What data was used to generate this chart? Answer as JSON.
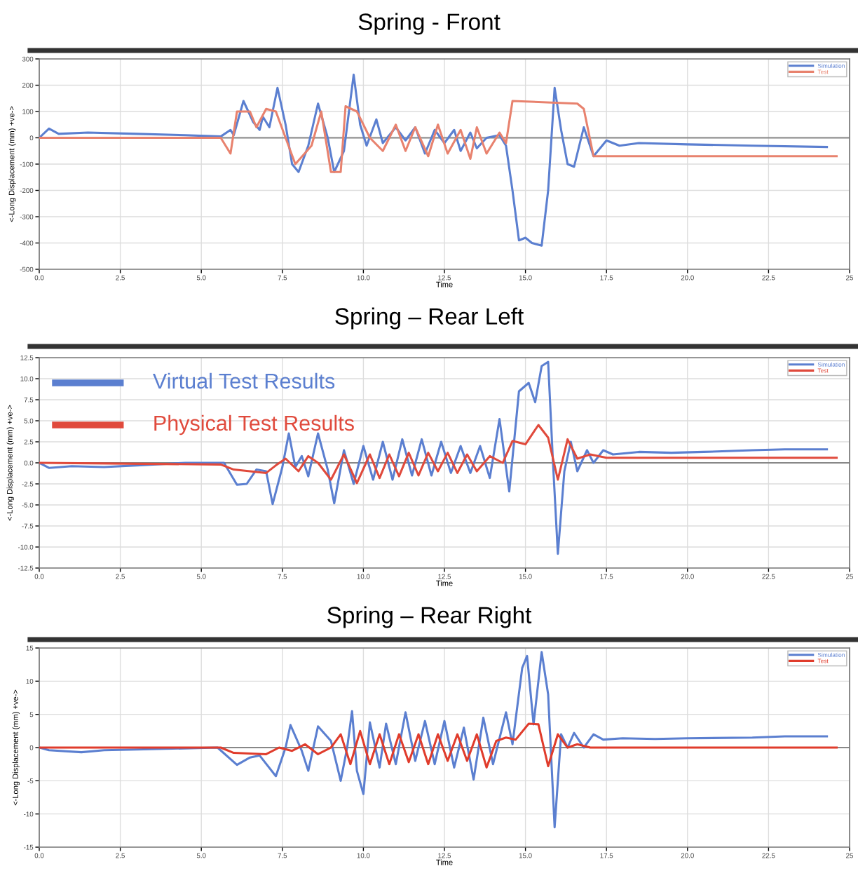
{
  "chart_data": [
    {
      "type": "line",
      "title": "Spring - Front",
      "xlabel": "Time",
      "ylabel": "<-Long Displacement (mm) +ve->",
      "xlim": [
        0,
        25
      ],
      "xticks": [
        {
          "value": 0,
          "label": "0.0"
        },
        2.5,
        {
          "value": 5,
          "label": "5.0"
        },
        7.5,
        {
          "value": 10,
          "label": "10.0"
        },
        12.5,
        {
          "value": 15,
          "label": "15.0"
        },
        17.5,
        {
          "value": 20,
          "label": "20.0"
        },
        22.5,
        {
          "value": 25,
          "label": "25"
        }
      ],
      "ylim": [
        -500,
        300
      ],
      "yticks": [
        -500,
        -400,
        -300,
        -200,
        -100,
        0,
        100,
        200,
        300
      ],
      "grid": true,
      "legend": "top right",
      "ref_lines": [
        {
          "axis": "y",
          "value": 0,
          "color": "#888888"
        }
      ],
      "series": [
        {
          "name": "Simulation",
          "color": "#5b7fd0",
          "x": [
            0,
            0.3,
            0.6,
            1.5,
            3,
            4.5,
            5.6,
            5.9,
            6.0,
            6.3,
            6.6,
            6.8,
            6.9,
            7.1,
            7.35,
            7.6,
            7.8,
            8.0,
            8.3,
            8.6,
            8.9,
            9.1,
            9.4,
            9.7,
            9.9,
            10.1,
            10.4,
            10.6,
            11.0,
            11.3,
            11.6,
            11.9,
            12.2,
            12.5,
            12.8,
            13.0,
            13.3,
            13.5,
            13.8,
            14.2,
            14.4,
            14.6,
            14.8,
            15.0,
            15.2,
            15.5,
            15.7,
            15.9,
            16.1,
            16.3,
            16.5,
            16.8,
            17.1,
            17.5,
            17.9,
            18.5,
            20,
            22,
            24.3
          ],
          "values": [
            0,
            35,
            15,
            20,
            15,
            10,
            5,
            30,
            10,
            140,
            60,
            30,
            80,
            40,
            190,
            50,
            -100,
            -130,
            -30,
            130,
            0,
            -130,
            -50,
            240,
            50,
            -30,
            70,
            -20,
            40,
            -10,
            40,
            -60,
            30,
            -20,
            30,
            -50,
            20,
            -40,
            0,
            10,
            -30,
            -200,
            -390,
            -380,
            -400,
            -410,
            -200,
            190,
            30,
            -100,
            -110,
            40,
            -70,
            -10,
            -30,
            -20,
            -25,
            -30,
            -35
          ]
        },
        {
          "name": "Test",
          "color": "#e8826e",
          "x": [
            0,
            5.6,
            5.9,
            6.1,
            6.5,
            6.7,
            7.0,
            7.3,
            7.6,
            7.9,
            8.4,
            8.7,
            9.0,
            9.3,
            9.45,
            9.8,
            10.2,
            10.6,
            11.0,
            11.3,
            11.6,
            12.0,
            12.3,
            12.6,
            13.0,
            13.3,
            13.5,
            13.8,
            14.2,
            14.4,
            14.6,
            16.6,
            16.8,
            17.1,
            24.6
          ],
          "values": [
            0,
            0,
            -60,
            100,
            100,
            40,
            110,
            100,
            0,
            -100,
            -30,
            100,
            -130,
            -130,
            120,
            100,
            0,
            -50,
            50,
            -50,
            40,
            -70,
            50,
            -60,
            30,
            -80,
            40,
            -60,
            20,
            -20,
            140,
            130,
            110,
            -70,
            -70
          ]
        }
      ]
    },
    {
      "type": "line",
      "title": "Spring – Rear Left",
      "xlabel": "Time",
      "ylabel": "<-Long Displacement (mm) +ve->",
      "xlim": [
        0,
        25
      ],
      "xticks": [
        {
          "value": 0,
          "label": "0.0"
        },
        2.5,
        {
          "value": 5,
          "label": "5.0"
        },
        7.5,
        {
          "value": 10,
          "label": "10.0"
        },
        12.5,
        {
          "value": 15,
          "label": "15.0"
        },
        17.5,
        {
          "value": 20,
          "label": "20.0"
        },
        22.5,
        {
          "value": 25,
          "label": "25"
        }
      ],
      "ylim": [
        -12.5,
        12.5
      ],
      "yticks": [
        -12.5,
        {
          "value": -10,
          "label": "-10.0"
        },
        -7.5,
        {
          "value": -5,
          "label": "-5.0"
        },
        -2.5,
        {
          "value": 0,
          "label": "0.0"
        },
        2.5,
        {
          "value": 5,
          "label": "5.0"
        },
        7.5,
        {
          "value": 10,
          "label": "10.0"
        },
        12.5
      ],
      "grid": true,
      "legend": "top right",
      "ref_lines": [
        {
          "axis": "y",
          "value": 0,
          "color": "#888888"
        }
      ],
      "annotations": [
        "Virtual Test Results",
        "Physical Test Results"
      ],
      "series": [
        {
          "name": "Simulation",
          "color": "#5b7fd0",
          "x": [
            0,
            0.3,
            1,
            2,
            3,
            4.5,
            5.7,
            6.1,
            6.4,
            6.7,
            7.0,
            7.2,
            7.5,
            7.7,
            7.9,
            8.1,
            8.3,
            8.6,
            8.9,
            9.1,
            9.4,
            9.7,
            10.0,
            10.3,
            10.6,
            10.9,
            11.2,
            11.5,
            11.8,
            12.1,
            12.4,
            12.7,
            13.0,
            13.3,
            13.6,
            13.9,
            14.2,
            14.5,
            14.8,
            15.1,
            15.3,
            15.5,
            15.7,
            15.85,
            16.0,
            16.2,
            16.4,
            16.6,
            16.9,
            17.1,
            17.4,
            17.7,
            18.5,
            19.5,
            20.5,
            22,
            23,
            24.3
          ],
          "values": [
            0,
            -0.6,
            -0.4,
            -0.5,
            -0.3,
            0,
            0,
            -2.6,
            -2.5,
            -0.8,
            -1,
            -4.9,
            -0.5,
            3.5,
            -0.5,
            0.8,
            -1.6,
            3.5,
            -0.8,
            -4.8,
            1.5,
            -2.5,
            2,
            -2,
            2.5,
            -2,
            2.8,
            -1.5,
            2.8,
            -1.5,
            2.5,
            -1.2,
            2,
            -1.2,
            2,
            -1.8,
            5.2,
            -3.4,
            8.5,
            9.5,
            7.2,
            11.5,
            12,
            0,
            -10.8,
            -1,
            2.5,
            -1,
            1.5,
            0,
            1.5,
            1,
            1.3,
            1.2,
            1.3,
            1.5,
            1.6,
            1.6
          ]
        },
        {
          "name": "Test",
          "color": "#e04a3c",
          "x": [
            0,
            5.6,
            6,
            6.5,
            7,
            7.3,
            7.6,
            8.0,
            8.3,
            8.6,
            9.0,
            9.4,
            9.8,
            10.2,
            10.5,
            10.8,
            11.1,
            11.4,
            11.7,
            12,
            12.3,
            12.6,
            12.9,
            13.2,
            13.5,
            13.9,
            14.3,
            14.6,
            15,
            15.4,
            15.7,
            16.0,
            16.3,
            16.6,
            17,
            17.5,
            24.6
          ],
          "values": [
            0,
            -0.2,
            -0.8,
            -1,
            -1.2,
            -0.3,
            0.5,
            -1,
            0.8,
            0,
            -2,
            1,
            -2.4,
            1,
            -1.8,
            1,
            -1.6,
            1.2,
            -1.5,
            1.2,
            -1,
            1.2,
            -1.2,
            1,
            -1,
            0.8,
            0,
            2.6,
            2.2,
            4.5,
            3,
            -2,
            2.8,
            0.5,
            1,
            0.6,
            0.6
          ]
        }
      ]
    },
    {
      "type": "line",
      "title": "Spring – Rear Right",
      "xlabel": "Time",
      "ylabel": "<-Long Displacement (mm) +ve->",
      "xlim": [
        0,
        25
      ],
      "xticks": [
        {
          "value": 0,
          "label": "0.0"
        },
        2.5,
        {
          "value": 5,
          "label": "5.0"
        },
        7.5,
        {
          "value": 10,
          "label": "10.0"
        },
        12.5,
        {
          "value": 15,
          "label": "15.0"
        },
        17.5,
        {
          "value": 20,
          "label": "20.0"
        },
        22.5,
        {
          "value": 25,
          "label": "25"
        }
      ],
      "ylim": [
        -15,
        15
      ],
      "yticks": [
        -15,
        -10,
        -5,
        0,
        5,
        10,
        15
      ],
      "grid": true,
      "legend": "top right",
      "ref_lines": [
        {
          "axis": "y",
          "value": 0,
          "color": "#888888"
        }
      ],
      "series": [
        {
          "name": "Simulation",
          "color": "#5b7fd0",
          "x": [
            0,
            0.3,
            1.3,
            2,
            3,
            5.5,
            6.1,
            6.5,
            6.8,
            7.3,
            7.6,
            7.75,
            8.1,
            8.3,
            8.6,
            9.0,
            9.3,
            9.5,
            9.65,
            9.8,
            10.0,
            10.2,
            10.5,
            10.7,
            11.0,
            11.3,
            11.6,
            11.9,
            12.2,
            12.5,
            12.8,
            13.1,
            13.4,
            13.7,
            14.0,
            14.4,
            14.6,
            14.9,
            15.05,
            15.25,
            15.5,
            15.7,
            15.9,
            16.1,
            16.3,
            16.5,
            16.8,
            17.1,
            17.4,
            18,
            19,
            20,
            22,
            23,
            24.3
          ],
          "values": [
            0,
            -0.4,
            -0.7,
            -0.4,
            -0.3,
            0,
            -2.6,
            -1.5,
            -1.2,
            -4.3,
            0,
            3.4,
            -0.5,
            -3.5,
            3.2,
            1,
            -5,
            0,
            5.5,
            -3.5,
            -7,
            3.8,
            -3,
            3.6,
            -2.5,
            5.3,
            -2,
            4,
            -2.5,
            4,
            -3,
            3,
            -4.8,
            4.5,
            -2.5,
            5.3,
            0.5,
            12,
            13.8,
            3.5,
            14.4,
            8,
            -12,
            2,
            0,
            2.2,
            0,
            2,
            1.2,
            1.4,
            1.3,
            1.4,
            1.5,
            1.7,
            1.7
          ]
        },
        {
          "name": "Test",
          "color": "#e03c2c",
          "x": [
            0,
            5.6,
            6,
            7,
            7.4,
            7.8,
            8.2,
            8.6,
            9.0,
            9.3,
            9.6,
            9.9,
            10.2,
            10.5,
            10.8,
            11.1,
            11.4,
            11.7,
            12,
            12.3,
            12.6,
            12.9,
            13.2,
            13.5,
            13.8,
            14.1,
            14.4,
            14.7,
            15.1,
            15.4,
            15.7,
            16,
            16.3,
            16.6,
            17,
            24.6
          ],
          "values": [
            0,
            0,
            -0.8,
            -1,
            0,
            -0.5,
            0.5,
            -1,
            0,
            2,
            -2.5,
            2.5,
            -2.5,
            2,
            -2.5,
            2,
            -2.2,
            2,
            -2.5,
            2,
            -2,
            2,
            -2,
            2,
            -3,
            1,
            1.5,
            1.2,
            3.6,
            3.5,
            -2.8,
            2,
            0,
            0.5,
            0,
            0
          ]
        }
      ]
    }
  ]
}
